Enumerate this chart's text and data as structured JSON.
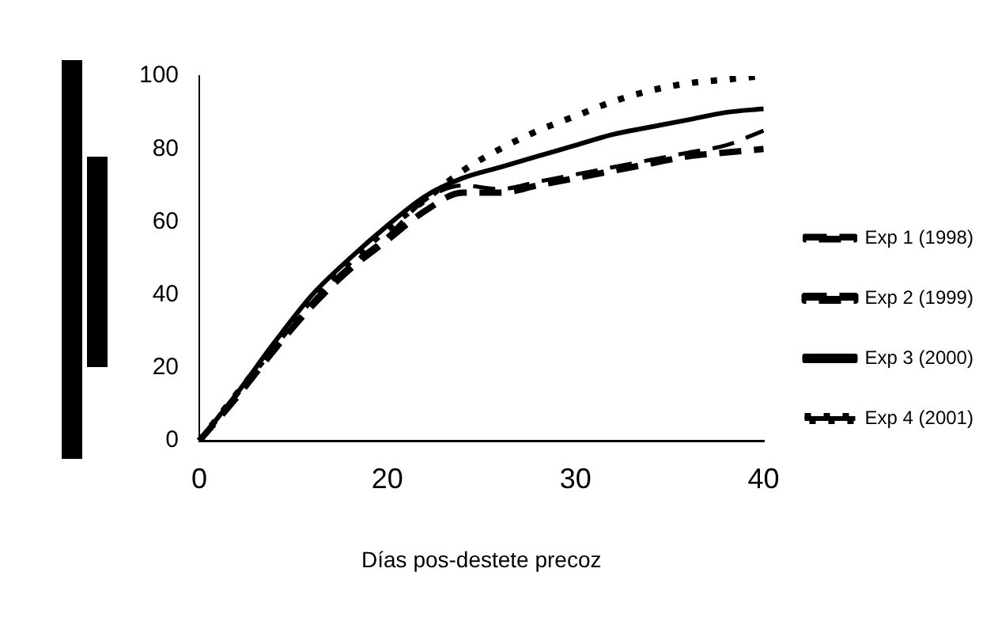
{
  "chart_data": {
    "type": "line",
    "xlabel": "Días pos-destete precoz",
    "categories": [
      "0",
      null,
      null,
      null,
      null,
      "20",
      null,
      null,
      null,
      null,
      "30",
      null,
      null,
      null,
      null,
      "40"
    ],
    "series": [
      {
        "name": "Exp 1 (1998)",
        "color": "#000000",
        "line_style": "dashed",
        "values": [
          0,
          12,
          25,
          38,
          48,
          56,
          66,
          70,
          69,
          71,
          73,
          75,
          77,
          79,
          81,
          85
        ]
      },
      {
        "name": "Exp 2 (1999)",
        "color": "#000000",
        "line_style": "dashed",
        "values": [
          0,
          12,
          25,
          37,
          47,
          55,
          63,
          68,
          68,
          70,
          72,
          74,
          76,
          78,
          79,
          80
        ]
      },
      {
        "name": "Exp 3 (2000)",
        "color": "#000000",
        "line_style": "solid",
        "values": [
          0,
          13,
          27,
          40,
          50,
          59,
          67,
          72,
          75,
          78,
          81,
          84,
          86,
          88,
          90,
          91
        ]
      },
      {
        "name": "Exp 4 (2001)",
        "color": "#000000",
        "line_style": "dotted",
        "values": [
          0,
          13,
          26,
          39,
          49,
          58,
          66,
          74,
          80,
          85,
          89,
          93,
          96,
          98,
          99,
          100
        ]
      }
    ],
    "ylim": [
      0,
      100
    ],
    "yticks": [
      0,
      20,
      40,
      60,
      80,
      100
    ],
    "grid": false,
    "legend": "right",
    "marker": "none"
  }
}
